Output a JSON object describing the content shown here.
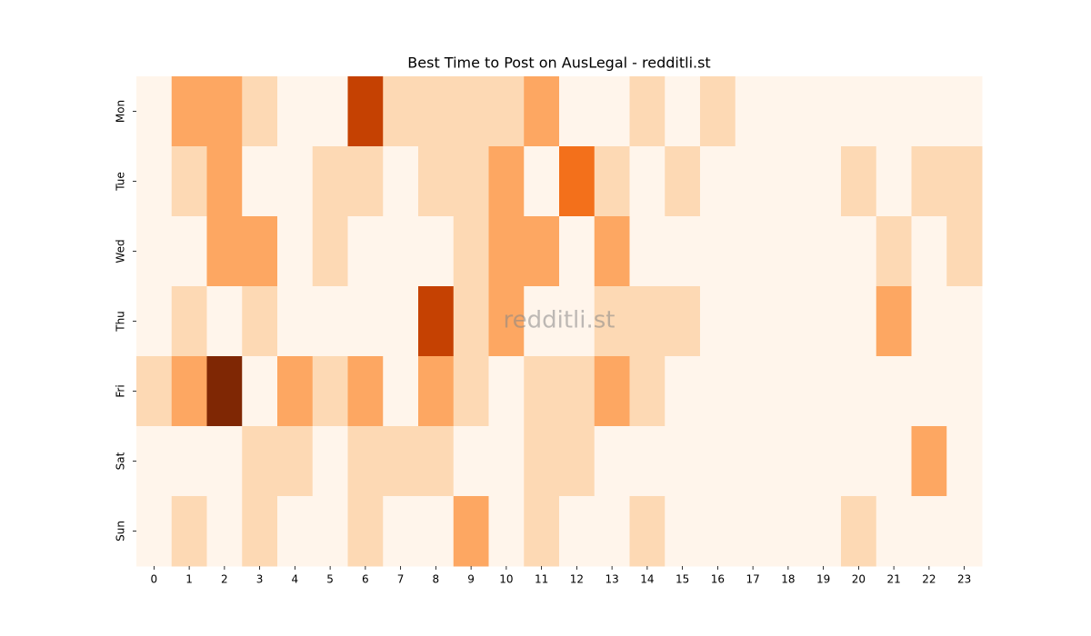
{
  "chart_data": {
    "type": "heatmap",
    "title": "Best Time to Post on AusLegal - redditli.st",
    "watermark": "redditli.st",
    "x_categories": [
      "0",
      "1",
      "2",
      "3",
      "4",
      "5",
      "6",
      "7",
      "8",
      "9",
      "10",
      "11",
      "12",
      "13",
      "14",
      "15",
      "16",
      "17",
      "18",
      "19",
      "20",
      "21",
      "22",
      "23"
    ],
    "y_categories": [
      "Mon",
      "Tue",
      "Wed",
      "Thu",
      "Fri",
      "Sat",
      "Sun"
    ],
    "colormap": [
      "#fff5eb",
      "#fdd9b4",
      "#fda762",
      "#f3701b",
      "#c54102",
      "#7f2704"
    ],
    "values": [
      [
        0,
        2,
        2,
        1,
        0,
        0,
        4,
        1,
        1,
        1,
        1,
        2,
        0,
        0,
        1,
        0,
        1,
        0,
        0,
        0,
        0,
        0,
        0,
        0
      ],
      [
        0,
        1,
        2,
        0,
        0,
        1,
        1,
        0,
        1,
        1,
        2,
        0,
        3,
        1,
        0,
        1,
        0,
        0,
        0,
        0,
        1,
        0,
        1,
        1
      ],
      [
        0,
        0,
        2,
        2,
        0,
        1,
        0,
        0,
        0,
        1,
        2,
        2,
        0,
        2,
        0,
        0,
        0,
        0,
        0,
        0,
        0,
        1,
        0,
        1
      ],
      [
        0,
        1,
        0,
        1,
        0,
        0,
        0,
        0,
        4,
        1,
        2,
        0,
        0,
        1,
        1,
        1,
        0,
        0,
        0,
        0,
        0,
        2,
        0,
        0
      ],
      [
        1,
        2,
        5,
        0,
        2,
        1,
        2,
        0,
        2,
        1,
        0,
        1,
        1,
        2,
        1,
        0,
        0,
        0,
        0,
        0,
        0,
        0,
        0,
        0
      ],
      [
        0,
        0,
        0,
        1,
        1,
        0,
        1,
        1,
        1,
        0,
        0,
        1,
        1,
        0,
        0,
        0,
        0,
        0,
        0,
        0,
        0,
        0,
        2,
        0
      ],
      [
        0,
        1,
        0,
        1,
        0,
        0,
        1,
        0,
        0,
        2,
        0,
        1,
        0,
        0,
        1,
        0,
        0,
        0,
        0,
        0,
        1,
        0,
        0,
        0
      ]
    ]
  }
}
